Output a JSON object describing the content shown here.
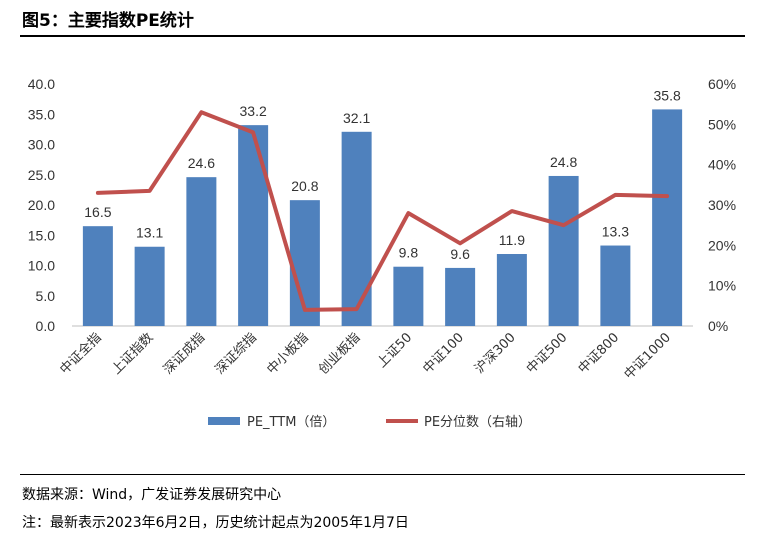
{
  "header": {
    "title": "图5：主要指数PE统计"
  },
  "footer": {
    "source": "数据来源：Wind，广发证券发展研究中心",
    "note": "注：最新表示2023年6月2日，历史统计起点为2005年1月7日"
  },
  "chart_data": {
    "type": "bar",
    "categories": [
      "中证全指",
      "上证指数",
      "深证成指",
      "深证综指",
      "中小板指",
      "创业板指",
      "上证50",
      "中证100",
      "沪深300",
      "中证500",
      "中证800",
      "中证1000"
    ],
    "series": [
      {
        "name": "PE_TTM（倍）",
        "type": "bar",
        "axis": "left",
        "color": "#4F81BD",
        "values": [
          16.5,
          13.1,
          24.6,
          33.2,
          20.8,
          32.1,
          9.8,
          9.6,
          11.9,
          24.8,
          13.3,
          35.8
        ],
        "labels": [
          "16.5",
          "13.1",
          "24.6",
          "33.2",
          "20.8",
          "32.1",
          "9.8",
          "9.6",
          "11.9",
          "24.8",
          "13.3",
          "35.8"
        ]
      },
      {
        "name": "PE分位数（右轴）",
        "type": "line",
        "axis": "right",
        "color": "#C0504D",
        "values": [
          0.33,
          0.335,
          0.53,
          0.48,
          0.04,
          0.042,
          0.28,
          0.205,
          0.285,
          0.25,
          0.325,
          0.322
        ]
      }
    ],
    "y_left": {
      "min": 0,
      "max": 40,
      "step": 5,
      "tick_labels": [
        "0.0",
        "5.0",
        "10.0",
        "15.0",
        "20.0",
        "25.0",
        "30.0",
        "35.0",
        "40.0"
      ]
    },
    "y_right": {
      "min": 0,
      "max": 0.6,
      "step": 0.1,
      "tick_labels": [
        "0%",
        "10%",
        "20%",
        "30%",
        "40%",
        "50%",
        "60%"
      ]
    },
    "grid": false,
    "legend_position": "bottom"
  }
}
